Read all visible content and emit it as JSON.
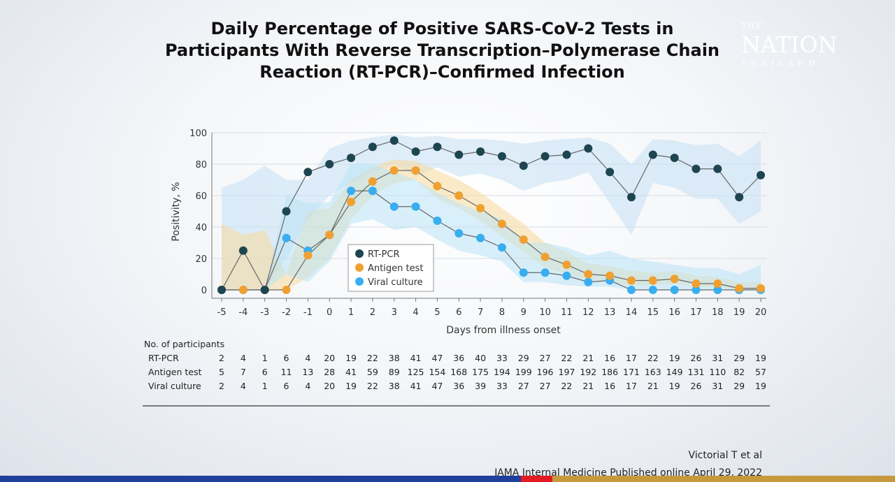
{
  "logo": {
    "line1": "THE",
    "line2": "NATION",
    "line3": "THAILAND"
  },
  "credit": {
    "line1": "Victorial T et al",
    "line2": "JAMA Internal Medicine Published online April 29, 2022"
  },
  "chart_data": {
    "type": "line",
    "title": "Daily Percentage of Positive SARS-CoV-2 Tests in Participants With Reverse Transcription–Polymerase Chain Reaction (RT-PCR)–Confirmed Infection",
    "xlabel": "Days from illness onset",
    "ylabel": "Positivity, %",
    "xlim": [
      -5,
      20
    ],
    "ylim": [
      0,
      100
    ],
    "yticks": [
      0,
      20,
      40,
      60,
      80,
      100
    ],
    "x": [
      -5,
      -4,
      -3,
      -2,
      -1,
      0,
      1,
      2,
      3,
      4,
      5,
      6,
      7,
      8,
      9,
      10,
      11,
      12,
      13,
      14,
      15,
      16,
      17,
      18,
      19,
      20
    ],
    "grid": "horizontal",
    "legend_position": "center",
    "series": [
      {
        "name": "RT-PCR",
        "color": "#1e4550",
        "band_color": "#c4e0f4",
        "values": [
          0,
          25,
          0,
          50,
          75,
          80,
          84,
          91,
          95,
          88,
          91,
          86,
          88,
          85,
          79,
          85,
          86,
          90,
          75,
          59,
          86,
          84,
          77,
          77,
          59,
          73
        ],
        "upper": [
          65,
          70,
          79,
          70,
          70,
          90,
          95,
          97,
          99,
          97,
          98,
          96,
          96,
          95,
          93,
          95,
          96,
          97,
          93,
          80,
          96,
          95,
          92,
          93,
          85,
          95
        ],
        "lower": [
          0,
          0,
          0,
          20,
          45,
          60,
          68,
          75,
          80,
          72,
          78,
          72,
          74,
          70,
          63,
          68,
          70,
          75,
          55,
          35,
          68,
          65,
          58,
          58,
          42,
          50
        ]
      },
      {
        "name": "Antigen test",
        "color": "#f0a030",
        "band_color": "#f7d99a",
        "values": [
          0,
          0,
          0,
          0,
          22,
          35,
          56,
          69,
          76,
          76,
          66,
          60,
          52,
          42,
          32,
          21,
          16,
          10,
          9,
          6,
          6,
          7,
          4,
          4,
          1,
          1
        ],
        "upper": [
          42,
          35,
          38,
          10,
          50,
          52,
          70,
          78,
          83,
          82,
          76,
          70,
          62,
          52,
          42,
          30,
          24,
          17,
          15,
          12,
          11,
          12,
          9,
          8,
          5,
          5
        ],
        "lower": [
          0,
          0,
          0,
          0,
          8,
          20,
          45,
          60,
          68,
          70,
          58,
          52,
          44,
          34,
          24,
          14,
          10,
          6,
          5,
          3,
          3,
          4,
          2,
          2,
          0,
          0
        ]
      },
      {
        "name": "Viral culture",
        "color": "#38aef0",
        "band_color": "#b9e3f6",
        "values": [
          0,
          0,
          0,
          33,
          25,
          35,
          63,
          63,
          53,
          53,
          44,
          36,
          33,
          27,
          11,
          11,
          9,
          5,
          6,
          0,
          0,
          0,
          0,
          0,
          0,
          0
        ],
        "upper": [
          0,
          0,
          0,
          60,
          55,
          56,
          80,
          80,
          75,
          70,
          62,
          55,
          50,
          45,
          30,
          30,
          27,
          22,
          25,
          20,
          18,
          16,
          14,
          14,
          10,
          16
        ],
        "lower": [
          0,
          0,
          0,
          10,
          5,
          18,
          42,
          45,
          38,
          40,
          32,
          25,
          22,
          18,
          5,
          5,
          3,
          2,
          2,
          0,
          0,
          0,
          0,
          0,
          0,
          0
        ]
      }
    ],
    "table": {
      "header": "No. of participants",
      "rows": [
        {
          "label": "RT-PCR",
          "values": [
            2,
            4,
            1,
            6,
            4,
            20,
            19,
            22,
            38,
            41,
            47,
            36,
            40,
            33,
            29,
            27,
            22,
            21,
            16,
            17,
            22,
            19,
            26,
            31,
            29,
            19
          ]
        },
        {
          "label": "Antigen test",
          "values": [
            5,
            7,
            6,
            11,
            13,
            28,
            41,
            59,
            89,
            125,
            154,
            168,
            175,
            194,
            199,
            196,
            197,
            192,
            186,
            171,
            163,
            149,
            131,
            110,
            82,
            57
          ]
        },
        {
          "label": "Viral culture",
          "values": [
            2,
            4,
            1,
            6,
            4,
            20,
            19,
            22,
            38,
            41,
            47,
            36,
            39,
            33,
            27,
            27,
            22,
            21,
            16,
            17,
            21,
            19,
            26,
            31,
            29,
            19
          ]
        }
      ]
    }
  }
}
